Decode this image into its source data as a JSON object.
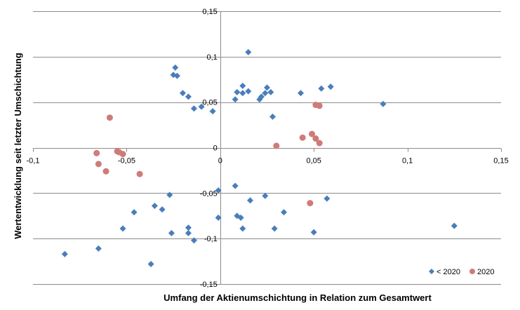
{
  "chart_data": {
    "type": "scatter",
    "xlabel": "Umfang der Aktienumschichtung in Relation zum Gesamtwert",
    "ylabel": "Wertentwicklung seit letzter Umschichtung",
    "xlim": [
      -0.1,
      0.15
    ],
    "ylim": [
      -0.15,
      0.15
    ],
    "x_ticks": [
      -0.1,
      -0.05,
      0,
      0.05,
      0.1,
      0.15
    ],
    "x_tick_labels": [
      "-0,1",
      "-0,05",
      "0",
      "0,05",
      "0,1",
      "0,15"
    ],
    "y_ticks": [
      -0.15,
      -0.1,
      -0.05,
      0,
      0.05,
      0.1,
      0.15
    ],
    "y_tick_labels": [
      "-0,15",
      "-0,1",
      "-0,05",
      "0",
      "0,05",
      "0,1",
      "0,15"
    ],
    "grid": "horizontal",
    "legend_position": "bottom-right",
    "series": [
      {
        "name": "< 2020",
        "marker": "diamond",
        "color": "#4a7ebb",
        "points": [
          [
            -0.083,
            -0.117
          ],
          [
            -0.065,
            -0.111
          ],
          [
            -0.052,
            -0.089
          ],
          [
            -0.046,
            -0.071
          ],
          [
            -0.037,
            -0.128
          ],
          [
            -0.035,
            -0.064
          ],
          [
            -0.031,
            -0.068
          ],
          [
            -0.027,
            -0.052
          ],
          [
            -0.026,
            -0.094
          ],
          [
            -0.025,
            0.08
          ],
          [
            -0.024,
            0.088
          ],
          [
            -0.023,
            0.079
          ],
          [
            -0.02,
            0.06
          ],
          [
            -0.017,
            0.056
          ],
          [
            -0.017,
            -0.088
          ],
          [
            -0.017,
            -0.094
          ],
          [
            -0.014,
            -0.102
          ],
          [
            -0.014,
            0.043
          ],
          [
            -0.01,
            0.045
          ],
          [
            -0.004,
            0.04
          ],
          [
            -0.001,
            -0.047
          ],
          [
            -0.001,
            -0.077
          ],
          [
            0.008,
            0.053
          ],
          [
            0.009,
            0.061
          ],
          [
            0.008,
            -0.042
          ],
          [
            0.009,
            -0.075
          ],
          [
            0.011,
            -0.077
          ],
          [
            0.012,
            0.068
          ],
          [
            0.012,
            0.06
          ],
          [
            0.012,
            -0.089
          ],
          [
            0.015,
            0.105
          ],
          [
            0.015,
            0.062
          ],
          [
            0.016,
            -0.058
          ],
          [
            0.021,
            0.053
          ],
          [
            0.022,
            0.056
          ],
          [
            0.024,
            0.06
          ],
          [
            0.024,
            -0.053
          ],
          [
            0.025,
            0.066
          ],
          [
            0.027,
            0.061
          ],
          [
            0.028,
            0.034
          ],
          [
            0.029,
            -0.089
          ],
          [
            0.034,
            -0.071
          ],
          [
            0.043,
            0.06
          ],
          [
            0.05,
            -0.093
          ],
          [
            0.054,
            0.065
          ],
          [
            0.057,
            -0.056
          ],
          [
            0.059,
            0.067
          ],
          [
            0.087,
            0.048
          ],
          [
            0.125,
            -0.086
          ]
        ]
      },
      {
        "name": "2020",
        "marker": "circle",
        "color": "#d07b79",
        "points": [
          [
            -0.059,
            0.033
          ],
          [
            -0.066,
            -0.006
          ],
          [
            -0.065,
            -0.018
          ],
          [
            -0.055,
            -0.004
          ],
          [
            -0.054,
            -0.005
          ],
          [
            -0.052,
            -0.007
          ],
          [
            -0.061,
            -0.026
          ],
          [
            -0.043,
            -0.029
          ],
          [
            0.03,
            0.002
          ],
          [
            0.044,
            0.011
          ],
          [
            0.049,
            0.015
          ],
          [
            0.051,
            0.01
          ],
          [
            0.051,
            0.047
          ],
          [
            0.053,
            0.046
          ],
          [
            0.053,
            0.005
          ],
          [
            0.048,
            -0.061
          ]
        ]
      }
    ]
  }
}
